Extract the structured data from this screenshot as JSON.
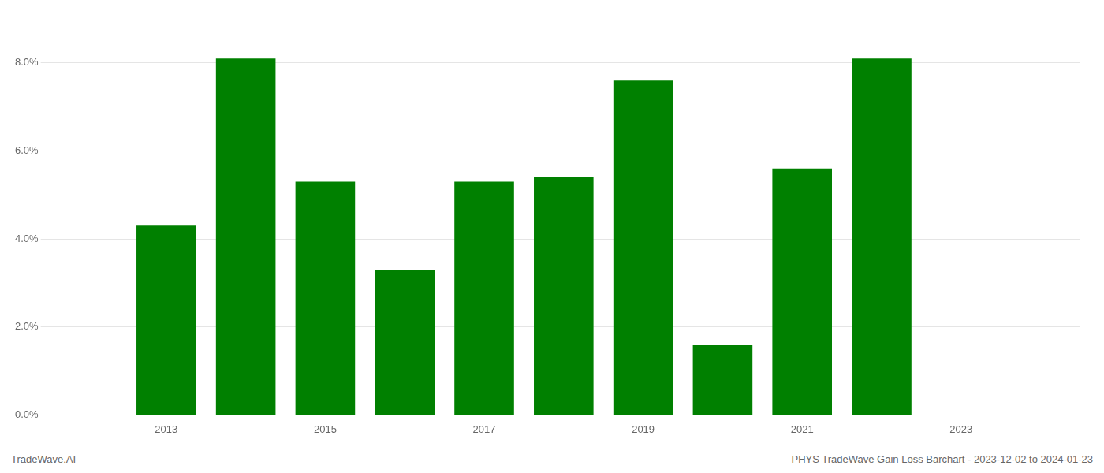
{
  "chart_data": {
    "type": "bar",
    "x": [
      2013,
      2014,
      2015,
      2016,
      2017,
      2018,
      2019,
      2020,
      2021,
      2022,
      2023
    ],
    "values": [
      0.043,
      0.081,
      0.053,
      0.033,
      0.053,
      0.054,
      0.076,
      0.016,
      0.056,
      0.081,
      0.0
    ],
    "color": "#008000",
    "xlim": [
      2011.5,
      2024.5
    ],
    "xticks": [
      2013,
      2015,
      2017,
      2019,
      2021,
      2023
    ],
    "ylim": [
      0,
      0.09
    ],
    "yticks": [
      {
        "value": 0.0,
        "label": "0.0%"
      },
      {
        "value": 0.02,
        "label": "2.0%"
      },
      {
        "value": 0.04,
        "label": "4.0%"
      },
      {
        "value": 0.06,
        "label": "6.0%"
      },
      {
        "value": 0.08,
        "label": "8.0%"
      }
    ],
    "grid": true,
    "annotations": [
      "TradeWave.AI",
      "PHYS TradeWave Gain Loss Barchart - 2023-12-02 to 2024-01-23"
    ]
  }
}
